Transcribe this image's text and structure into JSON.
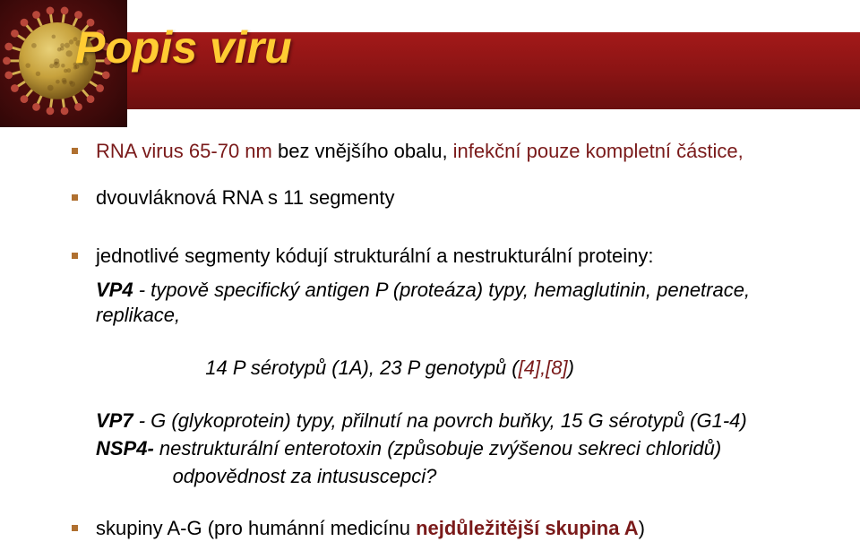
{
  "title": "Popis viru",
  "colors": {
    "title": "#ffcc33",
    "band_top": "#a31919",
    "band_bottom": "#6b0f0f",
    "dark_red": "#7a1a1a",
    "bullet": "#b07030",
    "text": "#000000",
    "background": "#ffffff"
  },
  "virus_image": {
    "body_fill": "#c7a23d",
    "spike_fill": "#d4b050",
    "knob_fill": "#b8473a",
    "shadow": "#5a1010"
  },
  "bullets": {
    "b1": {
      "p1": "RNA virus 65-70 nm",
      "p2": "  bez  vnějšího obalu,  ",
      "p3": "infekční pouze kompletní částice,"
    },
    "b2": "dvouvláknová RNA s 11 segmenty",
    "b3": {
      "lead": "jednotlivé  segmenty  kódují strukturální a nestrukturální proteiny:",
      "vp4_lbl": "VP4",
      "vp4_txt": " - typově specifický antigen P ",
      "vp4_par": "(proteáza)",
      "vp4_rest": " typy, hemaglutinin, penetrace, replikace,",
      "ser": "              14 P sérotypů (1A), 23 P genotypů (",
      "ref": "[4],[8]",
      "ser_close": ")",
      "vp7_lbl": "VP7",
      "vp7_g": " - G (glykoprotein) typy,",
      "vp7_rest": " přilnutí na povrch buňky, 15 G sérotypů (G1-4)",
      "nsp4_lbl": "NSP4-",
      "nsp4_txt": " nestrukturální enterotoxin (způsobuje zvýšenou sekreci chloridů)",
      "odp": "              odpovědnost za intususcepci?"
    },
    "b4": {
      "p1": "skupiny A-G (pro humánní medicínu ",
      "p2": "nejdůležitější skupina A",
      "p3": ")"
    }
  }
}
